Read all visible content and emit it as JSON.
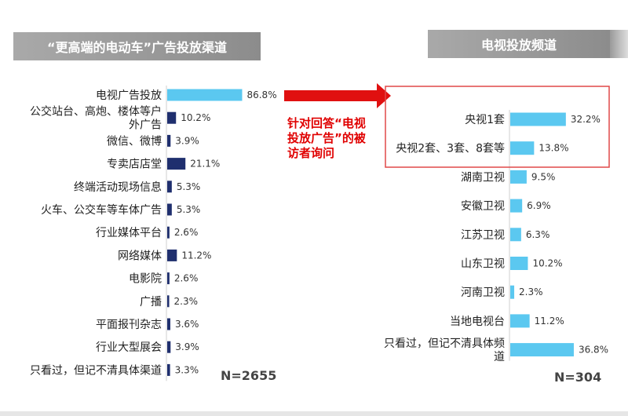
{
  "headers": {
    "left": "“更高端的电动车”广告投放渠道",
    "right": "电视投放频道"
  },
  "annotation": "针对回答“电视投放广告”的被访者询问",
  "colors": {
    "light_bar": "#5bc8f0",
    "dark_bar": "#1f2f6e",
    "arrow": "#e01010",
    "highlight_box": "#e04848"
  },
  "chart_data": [
    {
      "type": "bar",
      "orientation": "horizontal",
      "title": "“更高端的电动车”广告投放渠道",
      "xlabel": "",
      "ylabel": "",
      "xlim": [
        0,
        100
      ],
      "n_label": "N=2655",
      "categories": [
        "电视广告投放",
        "公交站台、高炮、楼体等户外广告",
        "微信、微博",
        "专卖店店堂",
        "终端活动现场信息",
        "火车、公交车等车体广告",
        "行业媒体平台",
        "网络媒体",
        "电影院",
        "广播",
        "平面报刊杂志",
        "行业大型展会",
        "只看过，但记不清具体渠道"
      ],
      "category_lines": [
        [
          "电视广告投放"
        ],
        [
          "公交站台、高炮、楼体等户",
          "外广告"
        ],
        [
          "微信、微博"
        ],
        [
          "专卖店店堂"
        ],
        [
          "终端活动现场信息"
        ],
        [
          "火车、公交车等车体广告"
        ],
        [
          "行业媒体平台"
        ],
        [
          "网络媒体"
        ],
        [
          "电影院"
        ],
        [
          "广播"
        ],
        [
          "平面报刊杂志"
        ],
        [
          "行业大型展会"
        ],
        [
          "只看过，但记不清具体渠道"
        ]
      ],
      "values": [
        86.8,
        10.2,
        3.9,
        21.1,
        5.3,
        5.3,
        2.6,
        11.2,
        2.6,
        2.3,
        3.6,
        3.9,
        3.3
      ],
      "value_labels": [
        "86.8%",
        "10.2%",
        "3.9%",
        "21.1%",
        "5.3%",
        "5.3%",
        "2.6%",
        "11.2%",
        "2.6%",
        "2.3%",
        "3.6%",
        "3.9%",
        "3.3%"
      ],
      "bar_styles": [
        "light",
        "dark",
        "dark",
        "dark",
        "dark",
        "dark",
        "dark",
        "dark",
        "dark",
        "dark",
        "dark",
        "dark",
        "dark"
      ]
    },
    {
      "type": "bar",
      "orientation": "horizontal",
      "title": "电视投放频道",
      "xlabel": "",
      "ylabel": "",
      "xlim": [
        0,
        100
      ],
      "n_label": "N=304",
      "categories": [
        "央视1套",
        "央视2套、3套、8套等",
        "湖南卫视",
        "安徽卫视",
        "江苏卫视",
        "山东卫视",
        "河南卫视",
        "当地电视台",
        "只看过，但记不清具体频道"
      ],
      "category_lines": [
        [
          "央视1套"
        ],
        [
          "央视2套、3套、8套等"
        ],
        [
          "湖南卫视"
        ],
        [
          "安徽卫视"
        ],
        [
          "江苏卫视"
        ],
        [
          "山东卫视"
        ],
        [
          "河南卫视"
        ],
        [
          "当地电视台"
        ],
        [
          "只看过，但记不清具体频",
          "道"
        ]
      ],
      "values": [
        32.2,
        13.8,
        9.5,
        6.9,
        6.3,
        10.2,
        2.3,
        11.2,
        36.8
      ],
      "value_labels": [
        "32.2%",
        "13.8%",
        "9.5%",
        "6.9%",
        "6.3%",
        "10.2%",
        "2.3%",
        "11.2%",
        "36.8%"
      ],
      "bar_styles": [
        "light",
        "light",
        "light",
        "light",
        "light",
        "light",
        "light",
        "light",
        "light"
      ]
    }
  ]
}
